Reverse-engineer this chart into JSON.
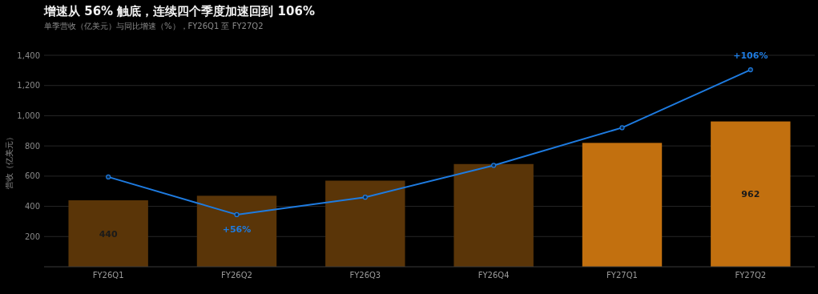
{
  "chart_data": {
    "type": "bar",
    "title": "增速从 56% 触底，连续四个季度加速回到 106%",
    "subtitle": "单季营收（亿美元）与同比增速（%），FY26Q1 至 FY27Q2",
    "ylabel": "营收（亿美元）",
    "categories": [
      "FY26Q1",
      "FY26Q2",
      "FY26Q3",
      "FY26Q4",
      "FY27Q1",
      "FY27Q2"
    ],
    "series": [
      {
        "colors": [
          "#5a3508",
          "#5a3508",
          "#5a3508",
          "#5a3508",
          "#c2700f",
          "#c2700f"
        ],
        "values": [
          440,
          470,
          570,
          680,
          820,
          962
        ],
        "value_labels": [
          "440",
          null,
          null,
          null,
          null,
          "962"
        ]
      },
      {
        "type": "line",
        "axis": "y2",
        "color": "#1e7be0",
        "values": [
          69,
          56,
          62,
          73,
          86,
          106
        ],
        "value_labels": [
          null,
          "+56%",
          null,
          null,
          null,
          "+106%"
        ],
        "marker": "circle",
        "line_style": "solid"
      }
    ],
    "ylim": [
      0,
      1400
    ],
    "yticks": [
      {
        "value": 200,
        "label": "200"
      },
      {
        "value": 400,
        "label": "400"
      },
      {
        "value": 600,
        "label": "600"
      },
      {
        "value": 800,
        "label": "800"
      },
      {
        "value": 1000,
        "label": "1,000"
      },
      {
        "value": 1200,
        "label": "1,200"
      },
      {
        "value": 1400,
        "label": "1,400"
      }
    ],
    "y2lim": [
      38,
      111
    ],
    "grid": "y"
  }
}
